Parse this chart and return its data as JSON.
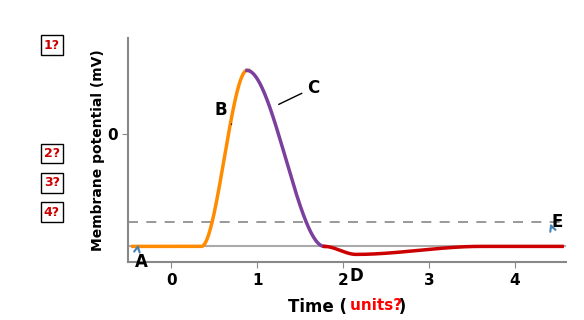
{
  "title": "",
  "ylabel": "Membrane potential (mV)",
  "xlim": [
    -0.5,
    4.6
  ],
  "ylim": [
    -80,
    60
  ],
  "resting_y": -70,
  "threshold_y": -55,
  "peak_y": 40,
  "hyper_y": -75,
  "background_color": "#ffffff",
  "ax_spine_color": "#888888",
  "dashed_color": "#888888",
  "resting_line_color": "#aaaaaa",
  "orange_color": "#FF8C00",
  "purple_color": "#7B3F9E",
  "red_color": "#CC0000",
  "steelblue": "#4682B4",
  "label_boxes": [
    {
      "text": "1?",
      "xf": -0.175,
      "yf": 0.97
    },
    {
      "text": "2?",
      "xf": -0.175,
      "yf": 0.485
    },
    {
      "text": "3?",
      "xf": -0.175,
      "yf": 0.355
    },
    {
      "text": "4?",
      "xf": -0.175,
      "yf": 0.225
    }
  ]
}
